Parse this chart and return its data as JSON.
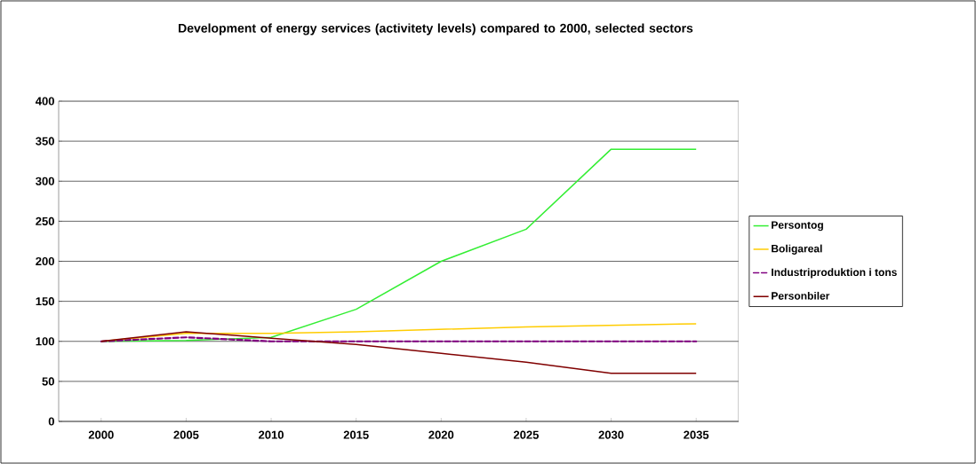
{
  "chart_data": {
    "type": "line",
    "title": "Development of energy services (activitety levels) compared to 2000, selected sectors",
    "categories": [
      "2000",
      "2005",
      "2010",
      "2015",
      "2020",
      "2025",
      "2030",
      "2035"
    ],
    "series": [
      {
        "name": "Persontog",
        "color": "#33ee33",
        "values": [
          100,
          101,
          105,
          140,
          200,
          240,
          340,
          340
        ]
      },
      {
        "name": "Boligareal",
        "color": "#ffcc00",
        "values": [
          100,
          110,
          110,
          112,
          115,
          118,
          120,
          122
        ]
      },
      {
        "name": "Industriproduktion i tons",
        "color": "#800080",
        "line_style": "dashed",
        "values": [
          100,
          105,
          100,
          100,
          100,
          100,
          100,
          100
        ]
      },
      {
        "name": "Personbiler",
        "color": "#800000",
        "values": [
          100,
          112,
          104,
          96,
          85,
          74,
          60,
          60
        ]
      }
    ],
    "ylim": [
      0,
      400
    ],
    "yticks": [
      0,
      50,
      100,
      150,
      200,
      250,
      300,
      350,
      400
    ],
    "grid": "y",
    "legend": "right",
    "marker": "none",
    "line_style": "solid"
  }
}
